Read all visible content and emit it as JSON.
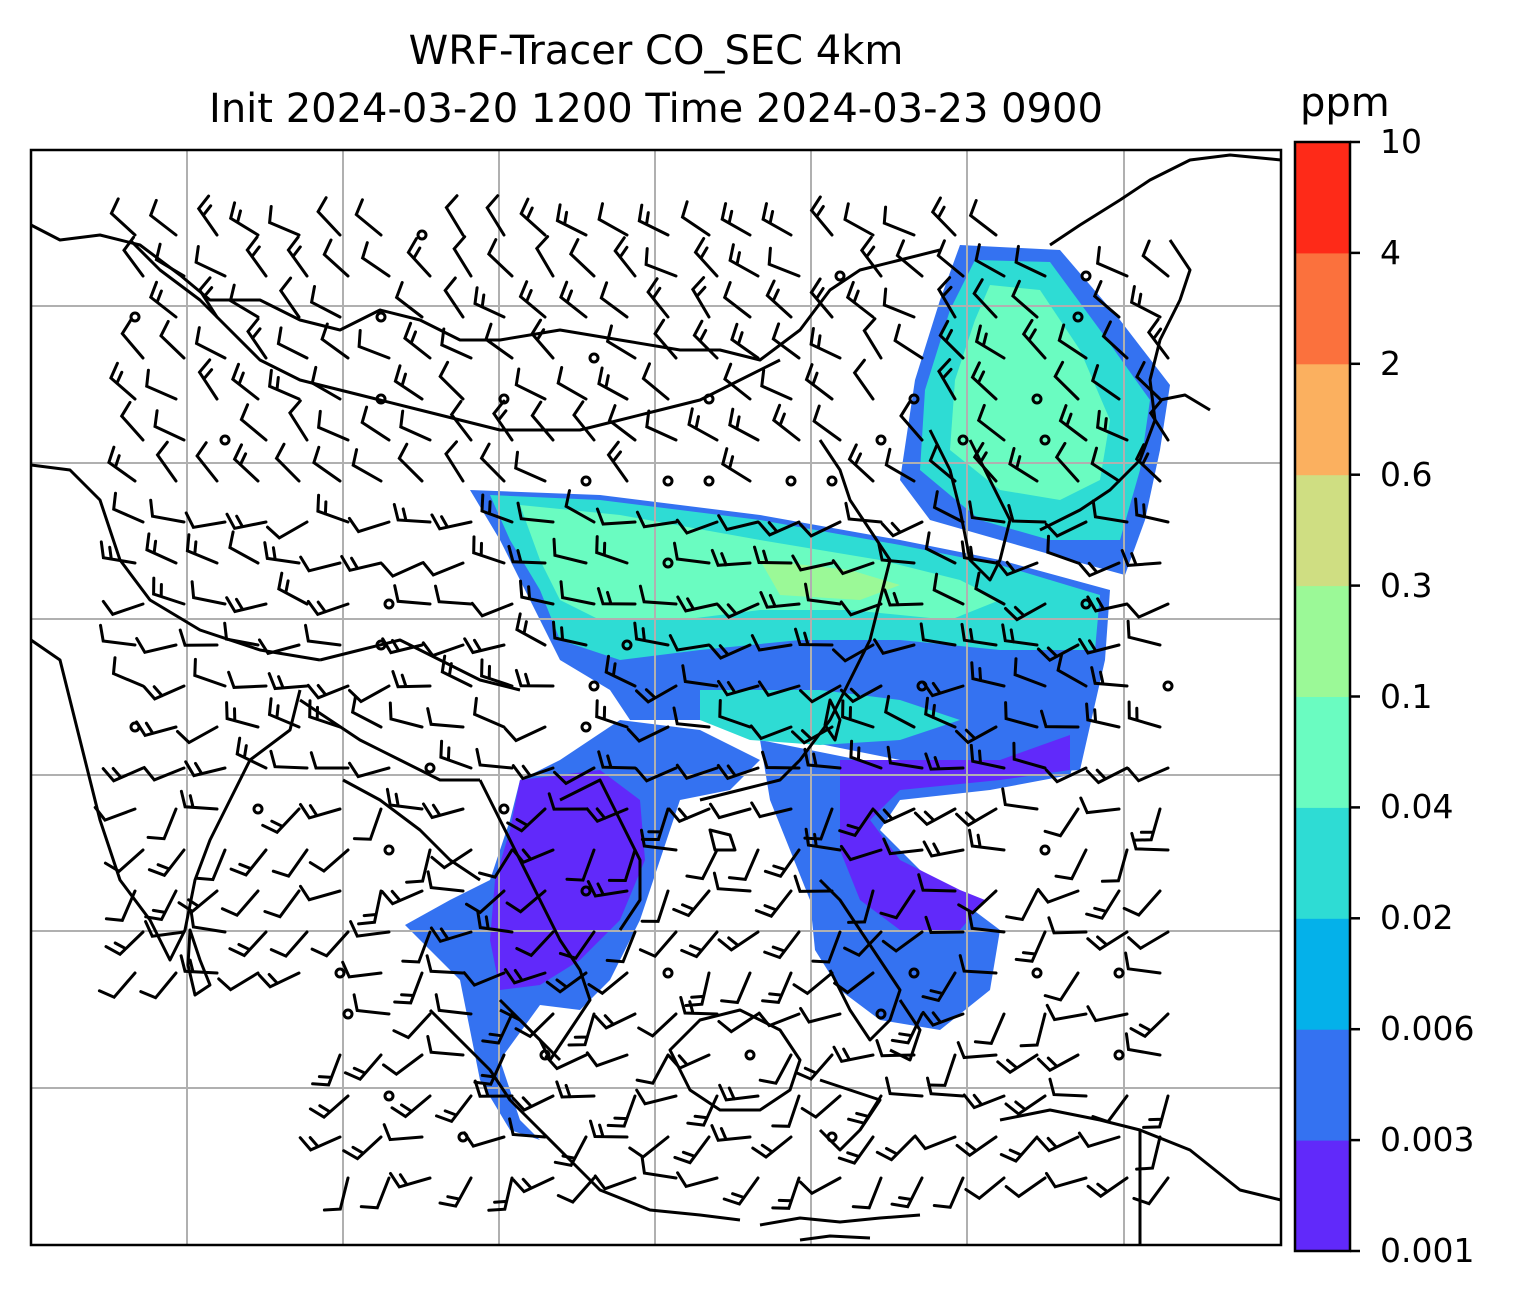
{
  "title": {
    "line1": "WRF-Tracer CO_SEC 4km",
    "line2": "Init 2024-03-20 1200 Time 2024-03-23 0900"
  },
  "colorbar": {
    "unit": "ppm",
    "levels": [
      "0.001",
      "0.003",
      "0.006",
      "0.02",
      "0.04",
      "0.1",
      "0.3",
      "0.6",
      "2",
      "4",
      "10"
    ],
    "colors": [
      "#6129fa",
      "#3472f1",
      "#04b1ea",
      "#2edcd4",
      "#6afcc1",
      "#9bf997",
      "#cfde82",
      "#fbb05f",
      "#fb713d",
      "#fe2a18"
    ]
  },
  "map": {
    "field": "CO_SEC tracer concentration",
    "overlay": "wind barbs",
    "gridlines": true,
    "coastlines": true,
    "borders": true
  }
}
